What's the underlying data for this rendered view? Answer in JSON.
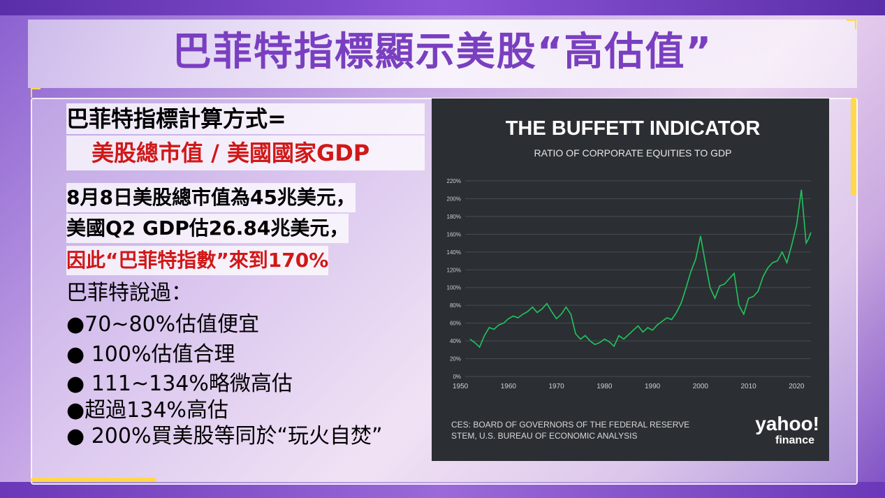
{
  "title": "巴菲特指標顯示美股“高估值”",
  "formula": {
    "line1": "巴菲特指標計算方式=",
    "line2": "美股總市值 / 美國國家GDP"
  },
  "facts": {
    "line1": "8月8日美股總市值為45兆美元，",
    "line2": "美國Q2 GDP估26.84兆美元，",
    "line3": "因此“巴菲特指數”來到170%"
  },
  "buffett_said": {
    "heading": "巴菲特說過：",
    "items": [
      "●70~80%估值便宜",
      "● 100%估值合理",
      "● 111~134%略微高估",
      "●超過134%高估",
      "● 200%買美股等同於“玩火自焚”"
    ]
  },
  "chart_data": {
    "type": "line",
    "title": "THE BUFFETT INDICATOR",
    "subtitle": "RATIO OF CORPORATE EQUITIES TO GDP",
    "xlabel": "",
    "ylabel": "",
    "xlim": [
      1951,
      2023
    ],
    "ylim": [
      0,
      220
    ],
    "x_ticks": [
      1950,
      1960,
      1970,
      1980,
      1990,
      2000,
      2010,
      2020
    ],
    "y_ticks": [
      "0%",
      "20%",
      "40%",
      "60%",
      "80%",
      "100%",
      "120%",
      "140%",
      "160%",
      "180%",
      "200%",
      "220%"
    ],
    "grid": true,
    "color": "#22c55e",
    "series": [
      {
        "x": [
          1952,
          1953,
          1954,
          1955,
          1956,
          1957,
          1958,
          1959,
          1960,
          1961,
          1962,
          1963,
          1964,
          1965,
          1966,
          1967,
          1968,
          1969,
          1970,
          1971,
          1972,
          1973,
          1974,
          1975,
          1976,
          1977,
          1978,
          1979,
          1980,
          1981,
          1982,
          1983,
          1984,
          1985,
          1986,
          1987,
          1988,
          1989,
          1990,
          1991,
          1992,
          1993,
          1994,
          1995,
          1996,
          1997,
          1998,
          1999,
          2000,
          2001,
          2002,
          2003,
          2004,
          2005,
          2006,
          2007,
          2008,
          2009,
          2010,
          2011,
          2012,
          2013,
          2014,
          2015,
          2016,
          2017,
          2018,
          2019,
          2020,
          2021,
          2022,
          2022.5,
          2023
        ],
        "y": [
          42,
          38,
          33,
          46,
          55,
          53,
          58,
          60,
          65,
          68,
          66,
          70,
          73,
          78,
          72,
          76,
          82,
          73,
          65,
          70,
          78,
          70,
          48,
          42,
          46,
          40,
          36,
          38,
          42,
          39,
          34,
          46,
          42,
          47,
          52,
          57,
          50,
          55,
          52,
          58,
          62,
          66,
          64,
          72,
          83,
          100,
          118,
          132,
          158,
          128,
          100,
          88,
          102,
          104,
          110,
          116,
          80,
          70,
          88,
          90,
          96,
          112,
          122,
          128,
          130,
          140,
          128,
          148,
          170,
          210,
          150,
          155,
          162
        ]
      }
    ],
    "source": "SOURCES: BOARD OF GOVERNORS OF THE FEDERAL RESERVE SYSTEM, U.S. BUREAU OF ECONOMIC ANALYSIS",
    "source_line1": "CES: BOARD OF GOVERNORS OF THE FEDERAL RESERVE",
    "source_line2": "STEM, U.S. BUREAU OF ECONOMIC ANALYSIS",
    "logo_line1": "yahoo!",
    "logo_line2": "finance"
  }
}
